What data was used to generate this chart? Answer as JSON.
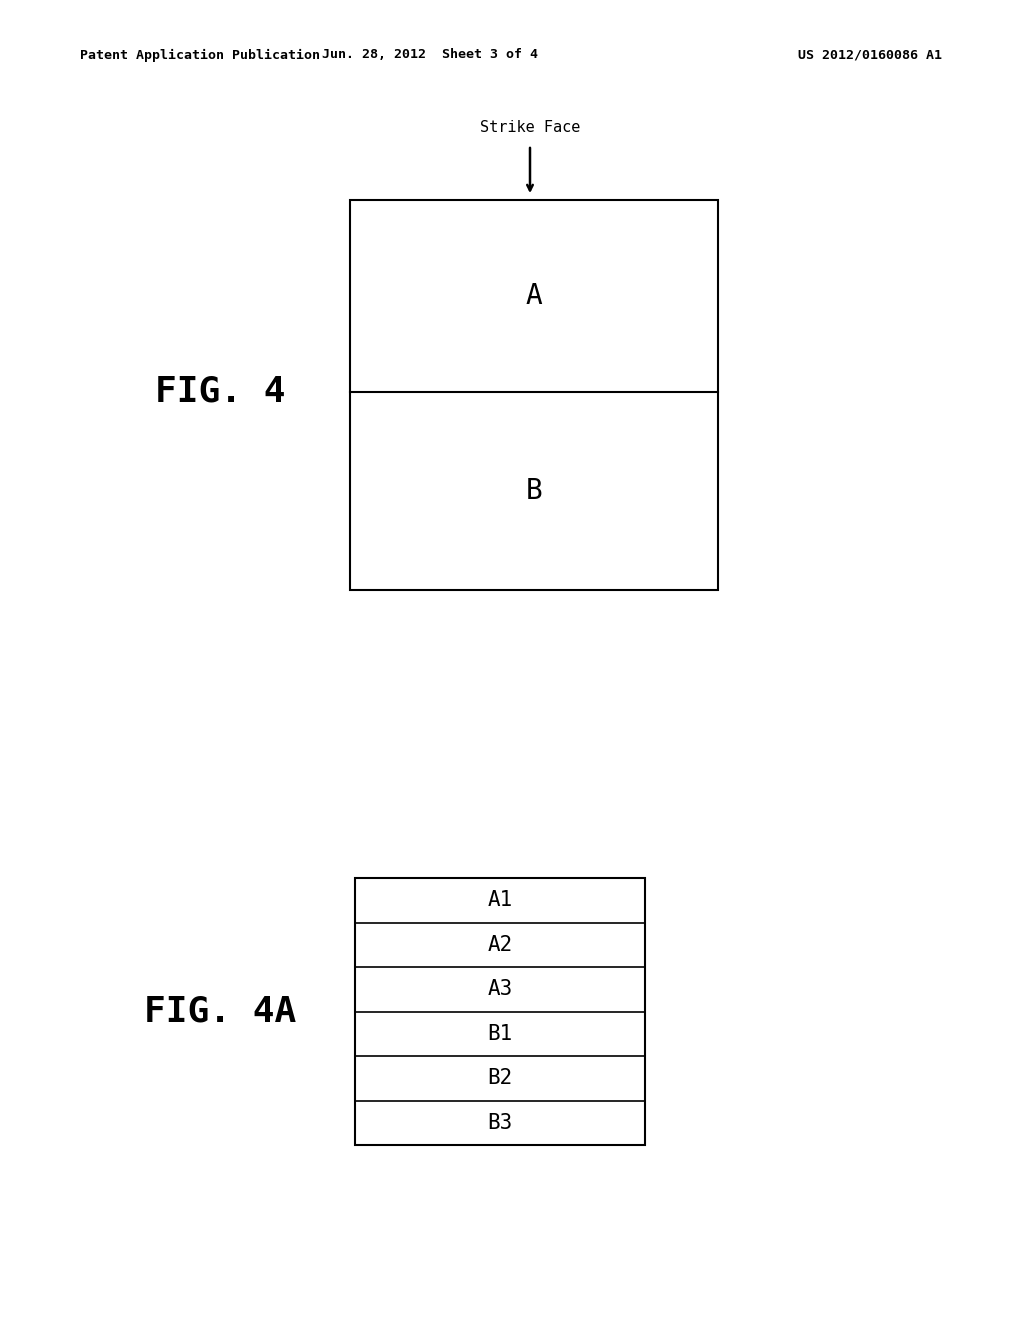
{
  "background_color": "#ffffff",
  "header_left": "Patent Application Publication",
  "header_center": "Jun. 28, 2012  Sheet 3 of 4",
  "header_right": "US 2012/0160086 A1",
  "header_fontsize": 9.5,
  "fig4_label": "FIG. 4",
  "fig4a_label": "FIG. 4A",
  "fig4_label_fontsize": 26,
  "fig4a_label_fontsize": 26,
  "strike_face_label": "Strike Face",
  "strike_face_fontsize": 11,
  "fig4_label_A": "A",
  "fig4_label_B": "B",
  "fig4_label_fontsize_AB": 20,
  "fig4a_rows": [
    "A1",
    "A2",
    "A3",
    "B1",
    "B2",
    "B3"
  ],
  "fig4a_row_fontsize": 15,
  "line_color": "#000000",
  "text_color": "#000000"
}
